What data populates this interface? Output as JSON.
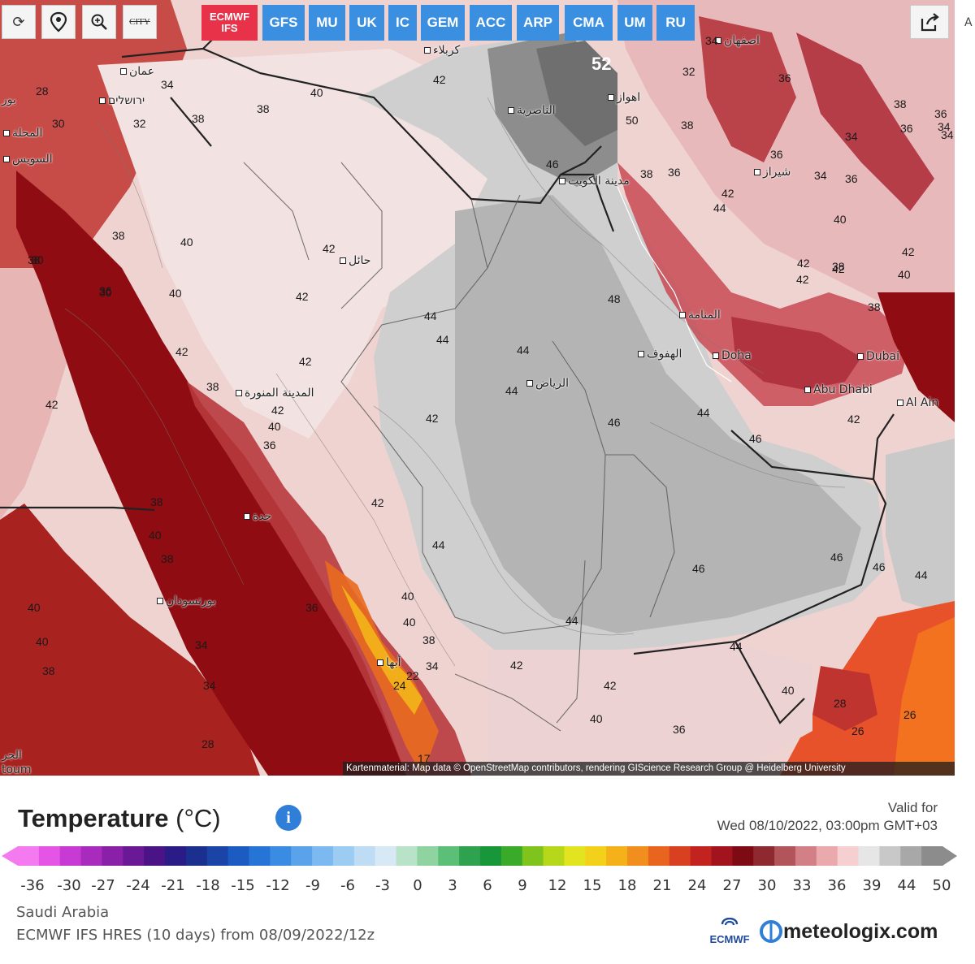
{
  "toolbar": {
    "refresh_icon": "refresh-icon",
    "location_icon": "map-pin-icon",
    "zoom_icon": "zoom-in-icon",
    "city_label": "CITY"
  },
  "models": [
    {
      "label": "ECMWF",
      "sub": "IFS",
      "active": true
    },
    {
      "label": "GFS"
    },
    {
      "label": "MU"
    },
    {
      "label": "UK"
    },
    {
      "label": "IC"
    },
    {
      "label": "GEM"
    },
    {
      "label": "ACC"
    },
    {
      "label": "ARP"
    },
    {
      "label": "CMA"
    },
    {
      "label": "UM"
    },
    {
      "label": "RU"
    }
  ],
  "share_icon": "share-icon",
  "edge_char": "A",
  "cities": [
    {
      "name": "عمان"
    },
    {
      "name": "ירושלים"
    },
    {
      "name": "كربلاء"
    },
    {
      "name": "اصفهان"
    },
    {
      "name": "اهواز"
    },
    {
      "name": "الناصرية"
    },
    {
      "name": "مدينة الكويت"
    },
    {
      "name": "شيراز"
    },
    {
      "name": "حائل"
    },
    {
      "name": "المنامة"
    },
    {
      "name": "الهفوف"
    },
    {
      "name": "Doha"
    },
    {
      "name": "Dubai"
    },
    {
      "name": "Abu Dhabi"
    },
    {
      "name": "Al Ain"
    },
    {
      "name": "الرياض"
    },
    {
      "name": "المدينة المنورة"
    },
    {
      "name": "جدة"
    },
    {
      "name": "بورتسودان"
    },
    {
      "name": "أبها"
    },
    {
      "name": "السويس"
    },
    {
      "name": "المحلة"
    },
    {
      "name": "بور"
    },
    {
      "name": "الجر"
    },
    {
      "name": "toum"
    }
  ],
  "isotherms": [
    {
      "v": "52",
      "big": true
    },
    {
      "v": "50"
    },
    {
      "v": "48"
    },
    {
      "v": "46"
    },
    {
      "v": "46"
    },
    {
      "v": "46"
    },
    {
      "v": "46"
    },
    {
      "v": "46"
    },
    {
      "v": "46"
    },
    {
      "v": "44"
    },
    {
      "v": "44"
    },
    {
      "v": "44"
    },
    {
      "v": "44"
    },
    {
      "v": "44"
    },
    {
      "v": "44"
    },
    {
      "v": "44"
    },
    {
      "v": "44"
    },
    {
      "v": "44"
    },
    {
      "v": "44"
    },
    {
      "v": "42"
    },
    {
      "v": "42"
    },
    {
      "v": "42"
    },
    {
      "v": "42"
    },
    {
      "v": "42"
    },
    {
      "v": "42"
    },
    {
      "v": "42"
    },
    {
      "v": "42"
    },
    {
      "v": "42"
    },
    {
      "v": "42"
    },
    {
      "v": "42"
    },
    {
      "v": "42"
    },
    {
      "v": "42"
    },
    {
      "v": "42"
    },
    {
      "v": "42"
    },
    {
      "v": "42"
    },
    {
      "v": "42"
    },
    {
      "v": "40"
    },
    {
      "v": "40"
    },
    {
      "v": "40"
    },
    {
      "v": "40"
    },
    {
      "v": "40"
    },
    {
      "v": "40"
    },
    {
      "v": "40"
    },
    {
      "v": "40"
    },
    {
      "v": "40"
    },
    {
      "v": "40"
    },
    {
      "v": "40"
    },
    {
      "v": "40"
    },
    {
      "v": "40"
    },
    {
      "v": "38"
    },
    {
      "v": "38"
    },
    {
      "v": "38"
    },
    {
      "v": "38"
    },
    {
      "v": "38"
    },
    {
      "v": "38"
    },
    {
      "v": "38"
    },
    {
      "v": "38"
    },
    {
      "v": "38"
    },
    {
      "v": "38"
    },
    {
      "v": "38"
    },
    {
      "v": "38"
    },
    {
      "v": "38"
    },
    {
      "v": "38"
    },
    {
      "v": "36"
    },
    {
      "v": "36"
    },
    {
      "v": "36"
    },
    {
      "v": "36"
    },
    {
      "v": "36"
    },
    {
      "v": "36"
    },
    {
      "v": "36"
    },
    {
      "v": "36"
    },
    {
      "v": "36"
    },
    {
      "v": "36"
    },
    {
      "v": "34"
    },
    {
      "v": "34"
    },
    {
      "v": "34"
    },
    {
      "v": "34"
    },
    {
      "v": "34"
    },
    {
      "v": "34"
    },
    {
      "v": "34"
    },
    {
      "v": "34"
    },
    {
      "v": "34"
    },
    {
      "v": "32"
    },
    {
      "v": "32"
    },
    {
      "v": "30"
    },
    {
      "v": "30"
    },
    {
      "v": "30"
    },
    {
      "v": "28"
    },
    {
      "v": "28"
    },
    {
      "v": "28"
    },
    {
      "v": "26"
    },
    {
      "v": "26"
    },
    {
      "v": "24"
    },
    {
      "v": "22"
    },
    {
      "v": "17"
    }
  ],
  "attribution": "Kartenmaterial: Map data © OpenStreetMap contributors, rendering GIScience Research Group @ Heidelberg University",
  "legend": {
    "title": "Temperature",
    "unit": "(°C)",
    "info_icon": "info-icon",
    "valid_for_label": "Valid for",
    "valid_time": "Wed 08/10/2022, 03:00pm GMT+03",
    "scale_labels": [
      "-36",
      "-30",
      "-27",
      "-24",
      "-21",
      "-18",
      "-15",
      "-12",
      "-9",
      "-6",
      "-3",
      "0",
      "3",
      "6",
      "9",
      "12",
      "15",
      "18",
      "21",
      "24",
      "27",
      "30",
      "33",
      "36",
      "39",
      "44",
      "50"
    ],
    "colors": [
      "#f47af0",
      "#e455e6",
      "#c83ad4",
      "#a92bbd",
      "#8a20a8",
      "#6a1896",
      "#4a1486",
      "#2a1c86",
      "#1b2f8f",
      "#1a44a6",
      "#1c5cc2",
      "#2574d6",
      "#3a8ce2",
      "#5aa3ea",
      "#7bb9f0",
      "#9dccf3",
      "#bfdcf5",
      "#d8e9f6",
      "#b9e3c8",
      "#8fd3a0",
      "#5bbf78",
      "#2ea24f",
      "#17963a",
      "#3aaa2a",
      "#7fc41d",
      "#b7d81a",
      "#e2e420",
      "#f3d11a",
      "#f4b11a",
      "#f08f1d",
      "#e8641f",
      "#d8401f",
      "#c2231f",
      "#a3131d",
      "#7e0b14",
      "#8e2a2f",
      "#b2555a",
      "#d27f85",
      "#eaa9ad",
      "#f6d0d1",
      "#e6e6e6",
      "#c8c8c8",
      "#a8a8a8",
      "#8c8c8c"
    ],
    "region": "Saudi Arabia",
    "model_run": "ECMWF IFS HRES (10 days) from 08/09/2022/12z",
    "ecmwf_logo_text": "ECMWF",
    "brand": "meteologix.com",
    "brand_icon": "meteologix-logo-icon"
  }
}
